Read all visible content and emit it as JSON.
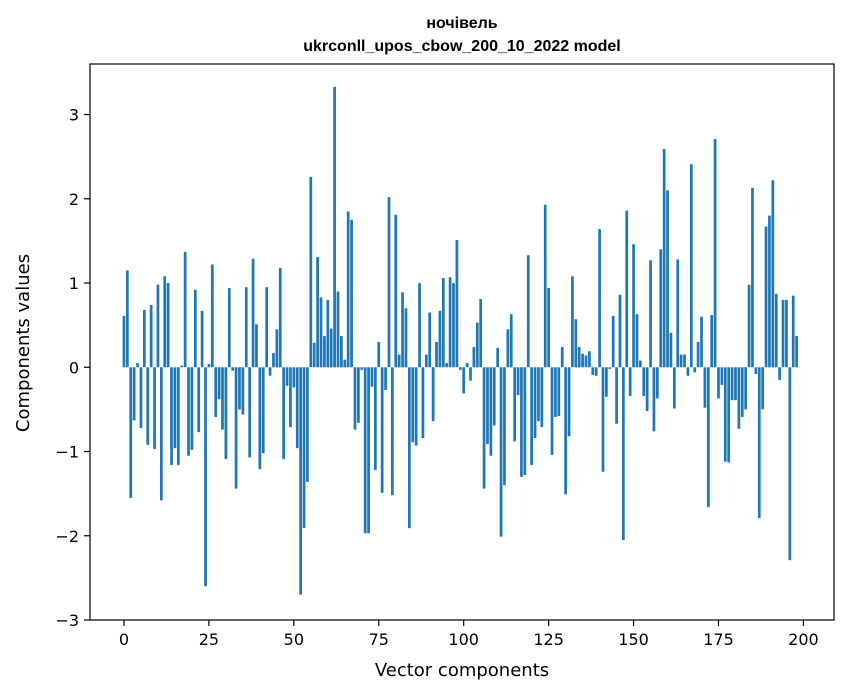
{
  "chart_data": {
    "type": "bar",
    "title_line1": "ночівель",
    "title_line2": "ukrconll_upos_cbow_200_10_2022 model",
    "xlabel": "Vector components",
    "ylabel": "Components values",
    "xlim": [
      -10,
      209
    ],
    "ylim": [
      -3,
      3.6
    ],
    "xticks": [
      0,
      25,
      50,
      75,
      100,
      125,
      150,
      175,
      200
    ],
    "yticks": [
      -3,
      -2,
      -1,
      0,
      1,
      2,
      3
    ],
    "ytick_labels": [
      "−3",
      "−2",
      "−1",
      "0",
      "1",
      "2",
      "3"
    ],
    "bar_color": "#1f77b4",
    "grid": false,
    "values": [
      0.61,
      1.15,
      -1.55,
      -0.63,
      0.05,
      -0.72,
      0.68,
      -0.92,
      0.74,
      -0.97,
      0.98,
      -1.58,
      1.08,
      1.0,
      -1.16,
      -0.96,
      -1.16,
      0.02,
      1.37,
      -1.05,
      -0.98,
      0.92,
      -0.77,
      0.67,
      -2.6,
      0.04,
      1.22,
      -0.59,
      -0.38,
      -0.74,
      -1.09,
      0.94,
      -0.04,
      -1.44,
      -0.5,
      -0.56,
      0.95,
      -1.07,
      1.29,
      0.51,
      -1.21,
      -1.02,
      0.95,
      -0.1,
      0.17,
      0.45,
      1.18,
      -1.09,
      -0.22,
      -0.71,
      -0.24,
      -0.96,
      -2.7,
      -1.91,
      -1.36,
      2.26,
      0.29,
      1.31,
      0.83,
      0.37,
      0.8,
      0.46,
      3.33,
      0.9,
      0.37,
      0.09,
      1.85,
      1.75,
      -0.74,
      -0.66,
      -0.03,
      -1.97,
      -1.97,
      -0.23,
      -1.22,
      0.3,
      -1.49,
      -0.27,
      2.02,
      -1.52,
      1.81,
      0.15,
      0.89,
      0.7,
      -1.91,
      -0.89,
      -0.93,
      1.0,
      -0.84,
      0.15,
      0.65,
      -0.64,
      0.3,
      0.67,
      1.06,
      0.05,
      1.07,
      1.0,
      1.51,
      -0.03,
      -0.31,
      0.05,
      -0.16,
      0.24,
      0.53,
      0.81,
      -1.44,
      -0.91,
      -1.05,
      -0.69,
      0.23,
      -2.01,
      -1.4,
      0.45,
      0.63,
      -0.88,
      -0.33,
      -1.3,
      -1.28,
      1.33,
      -1.16,
      -0.84,
      -0.64,
      -0.71,
      1.93,
      0.94,
      -1.04,
      -0.59,
      -0.58,
      0.24,
      -1.51,
      -0.82,
      1.08,
      0.57,
      0.24,
      0.16,
      0.14,
      0.19,
      -0.09,
      -0.1,
      1.64,
      -1.24,
      -0.35,
      -0.02,
      0.61,
      -0.67,
      0.86,
      -2.05,
      1.86,
      -0.34,
      1.46,
      0.63,
      0.08,
      -0.34,
      -0.52,
      1.27,
      -0.76,
      -0.37,
      1.4,
      2.59,
      2.1,
      0.41,
      -0.49,
      1.28,
      0.15,
      0.15,
      -0.1,
      2.41,
      -0.06,
      0.3,
      0.6,
      -0.48,
      -1.66,
      0.62,
      2.71,
      -0.37,
      -0.21,
      -1.12,
      -1.13,
      -0.39,
      -0.39,
      -0.73,
      -0.59,
      -0.5,
      0.98,
      2.13,
      -0.08,
      -1.79,
      -0.5,
      1.67,
      1.8,
      2.22,
      0.87,
      -0.15,
      0.8,
      0.8,
      -2.29,
      0.85,
      0.37
    ]
  }
}
